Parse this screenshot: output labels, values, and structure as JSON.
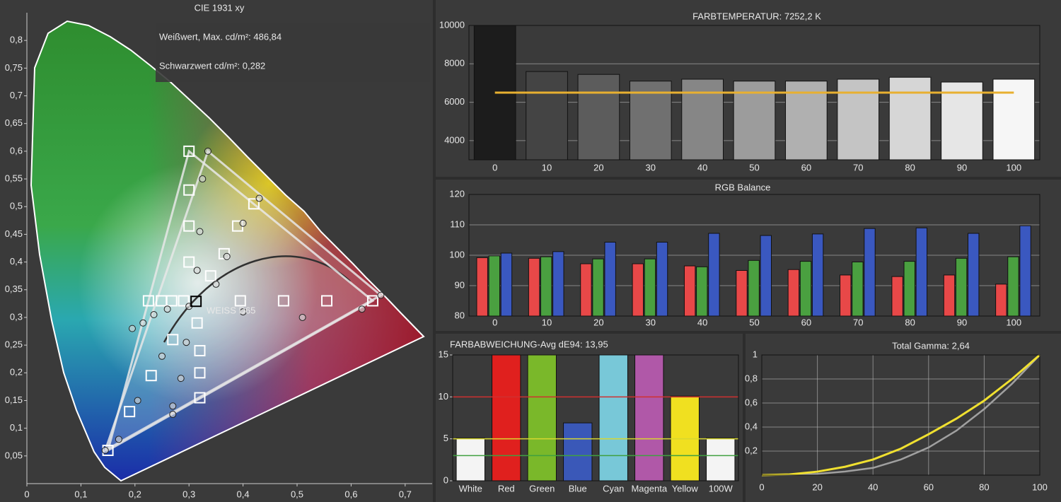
{
  "chart_data": [
    {
      "type": "scatter",
      "title": "CIE 1931 xy",
      "annotations": [
        "Weißwert, Max. cd/m²: 486,84",
        "Schwarzwert cd/m²: 0,282",
        "WEISS D65"
      ],
      "xlim": [
        0,
        0.75
      ],
      "ylim": [
        0,
        0.85
      ],
      "xticks": [
        0,
        {
          "value": 0.1,
          "label": "0,1"
        },
        {
          "value": 0.2,
          "label": "0,2"
        },
        {
          "value": 0.3,
          "label": "0,3"
        },
        {
          "value": 0.4,
          "label": "0,4"
        },
        {
          "value": 0.5,
          "label": "0,5"
        },
        {
          "value": 0.6,
          "label": "0,6"
        },
        {
          "value": 0.7,
          "label": "0,7"
        }
      ],
      "yticks": [
        {
          "value": 0.05,
          "label": "0,05"
        },
        {
          "value": 0.1,
          "label": "0,1"
        },
        {
          "value": 0.15,
          "label": "0,15"
        },
        {
          "value": 0.2,
          "label": "0,2"
        },
        {
          "value": 0.25,
          "label": "0,25"
        },
        {
          "value": 0.3,
          "label": "0,3"
        },
        {
          "value": 0.35,
          "label": "0,35"
        },
        {
          "value": 0.4,
          "label": "0,4"
        },
        {
          "value": 0.45,
          "label": "0,45"
        },
        {
          "value": 0.5,
          "label": "0,5"
        },
        {
          "value": 0.55,
          "label": "0,55"
        },
        {
          "value": 0.6,
          "label": "0,6"
        },
        {
          "value": 0.65,
          "label": "0,65"
        },
        {
          "value": 0.7,
          "label": "0,7"
        },
        {
          "value": 0.75,
          "label": "0,75"
        },
        {
          "value": 0.8,
          "label": "0,8"
        }
      ],
      "series": [
        {
          "marker": "square",
          "color": "#ffffff",
          "gamut_triangle": true,
          "x": [
            0.64,
            0.3,
            0.15,
            0.555,
            0.475,
            0.395,
            0.3,
            0.3,
            0.3,
            0.19,
            0.23,
            0.27,
            0.225,
            0.249,
            0.268,
            0.29,
            0.32,
            0.32,
            0.32,
            0.315,
            0.42,
            0.39,
            0.365,
            0.34
          ],
          "values": [
            0.33,
            0.6,
            0.06,
            0.33,
            0.33,
            0.33,
            0.53,
            0.465,
            0.4,
            0.13,
            0.195,
            0.26,
            0.33,
            0.33,
            0.33,
            0.33,
            0.155,
            0.2,
            0.24,
            0.29,
            0.505,
            0.465,
            0.415,
            0.375
          ]
        },
        {
          "marker": "circle",
          "color": "#d8d8d8",
          "gamut_triangle": true,
          "x": [
            0.655,
            0.335,
            0.145,
            0.62,
            0.51,
            0.4,
            0.325,
            0.32,
            0.315,
            0.17,
            0.205,
            0.25,
            0.195,
            0.215,
            0.235,
            0.26,
            0.27,
            0.27,
            0.285,
            0.295,
            0.43,
            0.4,
            0.37,
            0.35,
            0.3
          ],
          "values": [
            0.34,
            0.6,
            0.06,
            0.315,
            0.3,
            0.31,
            0.55,
            0.455,
            0.385,
            0.08,
            0.15,
            0.23,
            0.28,
            0.29,
            0.305,
            0.315,
            0.125,
            0.14,
            0.19,
            0.255,
            0.515,
            0.47,
            0.41,
            0.36,
            0.32
          ]
        },
        {
          "marker": "square",
          "color": "#000000",
          "x": [
            0.313
          ],
          "values": [
            0.329
          ]
        }
      ]
    },
    {
      "type": "bar",
      "title": "FARBTEMPERATUR: 7252,2 K",
      "categories": [
        "0",
        "10",
        "20",
        "30",
        "40",
        "50",
        "60",
        "70",
        "80",
        "90",
        "100"
      ],
      "values": [
        10000,
        7600,
        7450,
        7100,
        7200,
        7100,
        7100,
        7200,
        7300,
        7050,
        7200
      ],
      "colors": [
        "#1c1c1c",
        "#444444",
        "#5c5c5c",
        "#707070",
        "#868686",
        "#9c9c9c",
        "#b0b0b0",
        "#c4c4c4",
        "#d6d6d6",
        "#e6e6e6",
        "#f6f6f6"
      ],
      "ylim": [
        3000,
        10000
      ],
      "yticks": [
        4000,
        6000,
        8000,
        10000
      ],
      "grid": true,
      "reference_lines": [
        {
          "value": 6500,
          "color": "#e8b030"
        }
      ]
    },
    {
      "type": "grouped_bar",
      "title": "RGB Balance",
      "categories": [
        "0",
        "10",
        "20",
        "30",
        "40",
        "50",
        "60",
        "70",
        "80",
        "90",
        "100"
      ],
      "series": [
        {
          "color": "#e84848",
          "values": [
            99.2,
            99,
            97.2,
            97.2,
            96.5,
            95,
            95.3,
            93.5,
            93,
            93.5,
            90.5
          ]
        },
        {
          "color": "#4aa040",
          "values": [
            99.8,
            99.5,
            98.8,
            98.8,
            96.2,
            98.3,
            98,
            97.8,
            98,
            99,
            99.5
          ]
        },
        {
          "color": "#3a58c0",
          "values": [
            100.7,
            101.2,
            104.3,
            104.3,
            107.2,
            106.5,
            107,
            108.8,
            109,
            107.2,
            109.7
          ]
        }
      ],
      "ylim": [
        80,
        120
      ],
      "yticks": [
        80,
        90,
        100,
        110,
        120
      ],
      "grid": true
    },
    {
      "type": "bar",
      "title": "FARBABWEICHUNG-Avg dE94: 13,95",
      "categories": [
        "White",
        "Red",
        "Green",
        "Blue",
        "Cyan",
        "Magenta",
        "Yellow",
        "100W"
      ],
      "values": [
        5.1,
        15,
        15,
        6.9,
        15,
        15,
        10.1,
        5.1
      ],
      "colors": [
        "#f4f4f4",
        "#e0201e",
        "#7ab82a",
        "#3a58b8",
        "#78c8d8",
        "#b058a8",
        "#f0e020",
        "#f4f4f4"
      ],
      "ylim": [
        0,
        15
      ],
      "yticks": [
        0,
        5,
        10,
        15
      ],
      "grid": false,
      "reference_lines": [
        {
          "value": 10,
          "color": "#d03030"
        },
        {
          "value": 5,
          "color": "#d8d830"
        },
        {
          "value": 3,
          "color": "#40a040"
        }
      ]
    },
    {
      "type": "line",
      "title": "Total Gamma: 2,64",
      "x": [
        0,
        10,
        20,
        30,
        40,
        50,
        60,
        70,
        80,
        90,
        100
      ],
      "series": [
        {
          "color": "#a0a0a0",
          "values": [
            0,
            0.002,
            0.01,
            0.03,
            0.06,
            0.13,
            0.23,
            0.37,
            0.55,
            0.76,
            1
          ]
        },
        {
          "color": "#f0e030",
          "values": [
            0,
            0.006,
            0.029,
            0.07,
            0.13,
            0.22,
            0.34,
            0.47,
            0.62,
            0.8,
            1
          ]
        }
      ],
      "xlim": [
        0,
        100
      ],
      "ylim": [
        0,
        1
      ],
      "xticks": [
        0,
        20,
        40,
        60,
        80,
        100
      ],
      "yticks": [
        {
          "value": 0.2,
          "label": "0,2"
        },
        {
          "value": 0.4,
          "label": "0,4"
        },
        {
          "value": 0.6,
          "label": "0,6"
        },
        {
          "value": 0.8,
          "label": "0,8"
        },
        1
      ],
      "grid": true
    }
  ]
}
